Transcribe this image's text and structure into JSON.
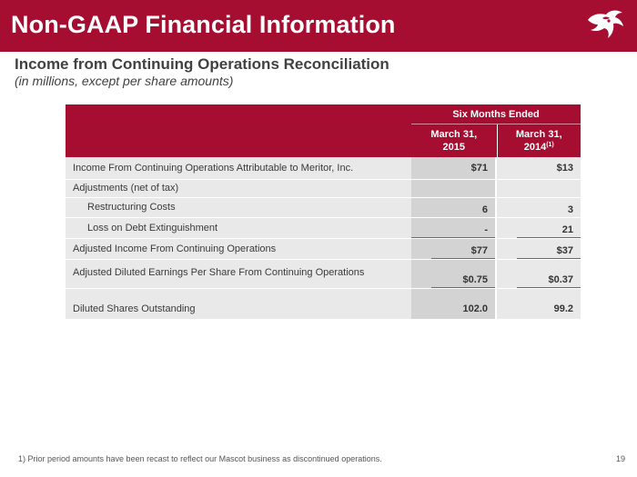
{
  "slide": {
    "title": "Non-GAAP Financial Information",
    "subtitle": "Income from Continuing Operations Reconciliation",
    "subnote": "(in millions, except per share amounts)",
    "footnote": "1)  Prior period amounts have been recast to reflect our Mascot business as discontinued operations.",
    "page_number": "19",
    "accent_color": "#a50d31",
    "logo_icon": "meritor-bull-logo-icon"
  },
  "table": {
    "group_header": "Six Months Ended",
    "col1_line1": "March 31,",
    "col1_line2": "2015",
    "col2_line1": "March 31,",
    "col2_line2": "2014",
    "col2_footnote_mark": "(1)",
    "rows": [
      {
        "label": "Income From Continuing Operations Attributable to Meritor, Inc.",
        "v2015": "$71",
        "v2014": "$13"
      },
      {
        "label": "Adjustments (net of tax)",
        "v2015": "",
        "v2014": ""
      },
      {
        "label": "Restructuring Costs",
        "v2015": "6",
        "v2014": "3"
      },
      {
        "label": "Loss on Debt Extinguishment",
        "v2015": "-",
        "v2014": "21"
      },
      {
        "label": "Adjusted Income From Continuing Operations",
        "v2015": "$77",
        "v2014": "$37"
      },
      {
        "label": "Adjusted Diluted Earnings Per Share From Continuing Operations",
        "v2015": "$0.75",
        "v2014": "$0.37"
      },
      {
        "label": "Diluted Shares Outstanding",
        "v2015": "102.0",
        "v2014": "99.2"
      }
    ]
  }
}
